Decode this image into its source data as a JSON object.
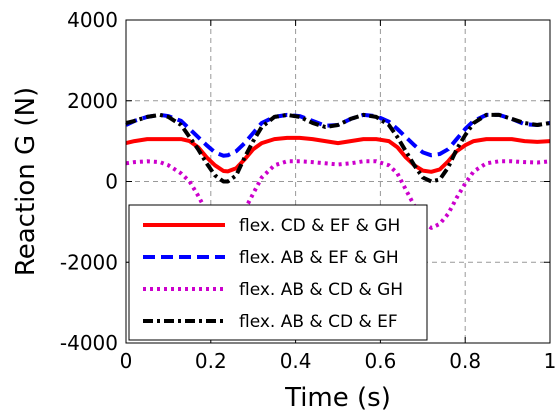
{
  "chart_data": {
    "type": "line",
    "xlabel": "Time (s)",
    "ylabel": "Reaction G (N)",
    "xlim": [
      0,
      1
    ],
    "ylim": [
      -4000,
      4000
    ],
    "xticks": [
      0,
      0.2,
      0.4,
      0.6,
      0.8,
      1
    ],
    "xtick_labels": [
      "0",
      "0.2",
      "0.4",
      "0.6",
      "0.8",
      "1"
    ],
    "yticks": [
      -4000,
      -2000,
      0,
      2000,
      4000
    ],
    "ytick_labels": [
      "-4000",
      "-2000",
      "0",
      "2000",
      "4000"
    ],
    "grid": true,
    "legend_position": "lower-left",
    "series": [
      {
        "name": "flex. CD & EF & GH",
        "color": "#ff0000",
        "dash": "solid",
        "x": [
          0,
          0.02,
          0.05,
          0.08,
          0.1,
          0.13,
          0.15,
          0.17,
          0.19,
          0.21,
          0.23,
          0.24,
          0.26,
          0.28,
          0.3,
          0.32,
          0.35,
          0.38,
          0.41,
          0.44,
          0.47,
          0.5,
          0.53,
          0.56,
          0.59,
          0.62,
          0.64,
          0.66,
          0.68,
          0.7,
          0.72,
          0.74,
          0.76,
          0.78,
          0.8,
          0.82,
          0.85,
          0.88,
          0.91,
          0.94,
          0.97,
          1.0
        ],
        "y": [
          950,
          1000,
          1050,
          1050,
          1050,
          1050,
          1000,
          850,
          600,
          400,
          260,
          250,
          330,
          550,
          800,
          950,
          1050,
          1080,
          1080,
          1050,
          1000,
          950,
          1000,
          1050,
          1050,
          1000,
          850,
          600,
          400,
          270,
          240,
          300,
          500,
          750,
          900,
          1000,
          1050,
          1050,
          1050,
          1000,
          980,
          1000
        ]
      },
      {
        "name": "flex. AB & EF & GH",
        "color": "#0000ff",
        "dash": "dashed",
        "x": [
          0,
          0.02,
          0.05,
          0.08,
          0.1,
          0.13,
          0.15,
          0.17,
          0.19,
          0.21,
          0.23,
          0.24,
          0.26,
          0.28,
          0.3,
          0.32,
          0.35,
          0.38,
          0.41,
          0.44,
          0.47,
          0.5,
          0.53,
          0.56,
          0.59,
          0.62,
          0.64,
          0.66,
          0.68,
          0.7,
          0.72,
          0.74,
          0.76,
          0.78,
          0.8,
          0.82,
          0.85,
          0.88,
          0.91,
          0.94,
          0.97,
          1.0
        ],
        "y": [
          1400,
          1500,
          1600,
          1650,
          1620,
          1500,
          1300,
          1100,
          900,
          720,
          640,
          650,
          750,
          950,
          1200,
          1450,
          1600,
          1650,
          1620,
          1500,
          1380,
          1400,
          1550,
          1650,
          1620,
          1480,
          1300,
          1100,
          900,
          720,
          650,
          680,
          800,
          1050,
          1300,
          1500,
          1650,
          1650,
          1550,
          1420,
          1400,
          1450
        ]
      },
      {
        "name": "flex. AB & CD & GH",
        "color": "#cc00cc",
        "dash": "dotted",
        "x": [
          0,
          0.02,
          0.05,
          0.08,
          0.1,
          0.13,
          0.15,
          0.17,
          0.19,
          0.21,
          0.23,
          0.24,
          0.26,
          0.28,
          0.3,
          0.32,
          0.35,
          0.38,
          0.41,
          0.44,
          0.47,
          0.5,
          0.53,
          0.56,
          0.59,
          0.62,
          0.64,
          0.66,
          0.68,
          0.7,
          0.72,
          0.74,
          0.76,
          0.78,
          0.8,
          0.82,
          0.85,
          0.88,
          0.91,
          0.94,
          0.97,
          1.0
        ],
        "y": [
          450,
          480,
          500,
          480,
          400,
          200,
          0,
          -350,
          -750,
          -1050,
          -1200,
          -1200,
          -1050,
          -700,
          -300,
          100,
          400,
          500,
          500,
          480,
          450,
          420,
          450,
          500,
          500,
          400,
          200,
          -200,
          -600,
          -1000,
          -1150,
          -1050,
          -800,
          -400,
          -50,
          250,
          450,
          500,
          500,
          480,
          470,
          500
        ]
      },
      {
        "name": "flex. AB & CD & EF",
        "color": "#000000",
        "dash": "dashdot",
        "x": [
          0,
          0.02,
          0.05,
          0.08,
          0.1,
          0.13,
          0.15,
          0.17,
          0.19,
          0.21,
          0.23,
          0.24,
          0.26,
          0.28,
          0.3,
          0.32,
          0.35,
          0.38,
          0.41,
          0.44,
          0.47,
          0.5,
          0.53,
          0.56,
          0.59,
          0.62,
          0.64,
          0.66,
          0.68,
          0.7,
          0.72,
          0.74,
          0.76,
          0.78,
          0.8,
          0.82,
          0.85,
          0.88,
          0.91,
          0.94,
          0.97,
          1.0
        ],
        "y": [
          1450,
          1500,
          1600,
          1650,
          1600,
          1400,
          1100,
          800,
          450,
          150,
          0,
          0,
          150,
          600,
          1000,
          1350,
          1600,
          1650,
          1600,
          1450,
          1350,
          1400,
          1550,
          1650,
          1600,
          1400,
          1100,
          750,
          400,
          100,
          0,
          50,
          350,
          800,
          1150,
          1450,
          1650,
          1650,
          1550,
          1450,
          1400,
          1450
        ]
      }
    ]
  }
}
